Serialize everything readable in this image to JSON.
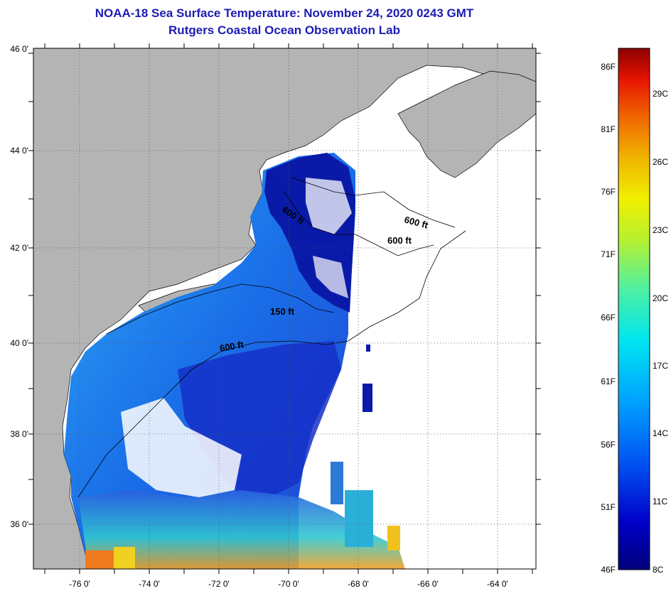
{
  "header": {
    "title": "NOAA-18 Sea Surface Temperature:  November 24, 2020 0243 GMT",
    "subtitle": "Rutgers Coastal Ocean Observation Lab"
  },
  "map": {
    "lat_labels": [
      "46 0'",
      "44 0'",
      "42 0'",
      "40 0'",
      "38 0'",
      "36 0'"
    ],
    "lon_labels": [
      "-76 0'",
      "-74 0'",
      "-72 0'",
      "-70 0'",
      "-68 0'",
      "-66 0'",
      "-64 0'"
    ],
    "contour_labels": [
      "600 ft",
      "600 ft",
      "600 ft",
      "150 ft",
      "600 ft"
    ],
    "colors": {
      "land": "#b4b4b4",
      "ocean_no_data": "#ffffff",
      "coastline": "#000000",
      "deep_sst": "#0a1aa8",
      "shelf_sst": "#1e8cf0",
      "warm_sst": "#f0c21e"
    }
  },
  "colorbar": {
    "f_labels": [
      "86F",
      "81F",
      "76F",
      "71F",
      "66F",
      "61F",
      "56F",
      "51F",
      "46F"
    ],
    "c_labels": [
      "29C",
      "26C",
      "23C",
      "20C",
      "17C",
      "14C",
      "11C",
      "8C"
    ],
    "gradient": [
      "#00007a",
      "#0000c8",
      "#0050f0",
      "#00a0ff",
      "#00e6f0",
      "#50f0a0",
      "#b4f032",
      "#f0f000",
      "#f0b400",
      "#f06400",
      "#e61400",
      "#8c0000"
    ]
  }
}
